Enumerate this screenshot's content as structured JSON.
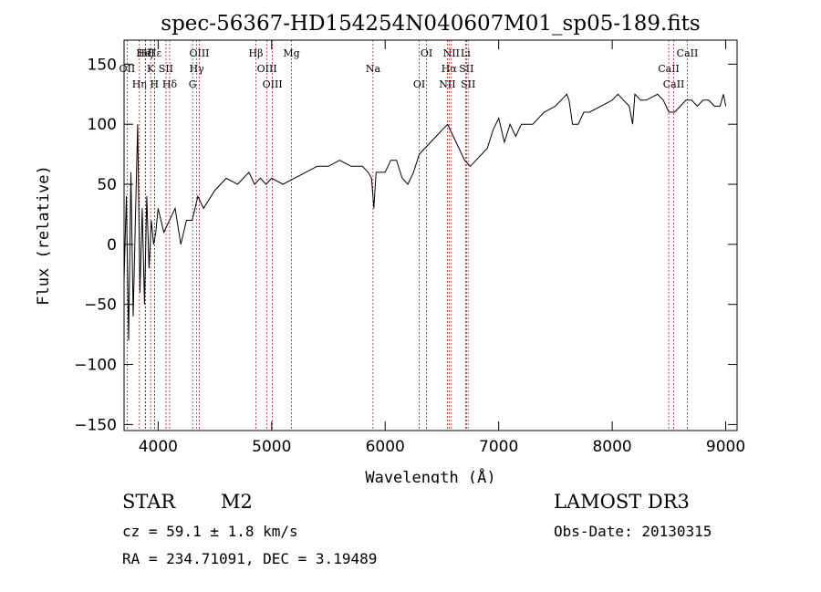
{
  "chart_data": {
    "type": "line",
    "title": "spec-56367-HD154254N040607M01_sp05-189.fits",
    "xlabel": "Wavelength (Å)",
    "ylabel": "Flux (relative)",
    "xlim": [
      3700,
      9100
    ],
    "ylim": [
      -155,
      170
    ],
    "xticks": [
      4000,
      5000,
      6000,
      7000,
      8000,
      9000
    ],
    "yticks": [
      -150,
      -100,
      -50,
      0,
      50,
      100,
      150
    ],
    "grid": false,
    "line_color": "#000000",
    "marker_color": "#b22222",
    "series": [
      {
        "x": [
          3700,
          3720,
          3740,
          3760,
          3780,
          3800,
          3820,
          3840,
          3860,
          3880,
          3900,
          3920,
          3940,
          3960,
          3980,
          4000,
          4050,
          4100,
          4150,
          4200,
          4250,
          4300,
          4350,
          4400,
          4500,
          4600,
          4700,
          4800,
          4850,
          4900,
          4950,
          5000,
          5100,
          5200,
          5300,
          5400,
          5500,
          5600,
          5700,
          5800,
          5850,
          5880,
          5900,
          5920,
          5950,
          6000,
          6050,
          6100,
          6150,
          6200,
          6250,
          6300,
          6350,
          6400,
          6450,
          6500,
          6550,
          6600,
          6650,
          6700,
          6750,
          6800,
          6850,
          6900,
          6950,
          7000,
          7050,
          7100,
          7150,
          7200,
          7300,
          7400,
          7500,
          7550,
          7600,
          7620,
          7650,
          7700,
          7750,
          7800,
          7900,
          8000,
          8050,
          8100,
          8150,
          8180,
          8200,
          8250,
          8300,
          8400,
          8450,
          8500,
          8550,
          8600,
          8650,
          8700,
          8750,
          8800,
          8850,
          8900,
          8950,
          8980,
          9000
        ],
        "y": [
          -30,
          40,
          -80,
          60,
          -60,
          20,
          100,
          -40,
          30,
          -50,
          40,
          -20,
          20,
          0,
          10,
          30,
          10,
          20,
          30,
          0,
          20,
          20,
          40,
          30,
          45,
          55,
          50,
          60,
          50,
          55,
          50,
          55,
          50,
          55,
          60,
          65,
          65,
          70,
          65,
          65,
          60,
          55,
          30,
          60,
          60,
          60,
          70,
          70,
          55,
          50,
          60,
          75,
          80,
          85,
          90,
          95,
          100,
          90,
          80,
          70,
          65,
          70,
          75,
          80,
          95,
          105,
          85,
          100,
          90,
          100,
          100,
          110,
          115,
          120,
          125,
          120,
          100,
          100,
          110,
          110,
          115,
          120,
          125,
          120,
          115,
          100,
          125,
          120,
          120,
          125,
          120,
          110,
          110,
          115,
          120,
          120,
          115,
          120,
          120,
          115,
          115,
          125,
          115
        ]
      }
    ],
    "annotations": [
      {
        "label": "Hε",
        "x": 3970
      },
      {
        "label": "OII",
        "x": 3727
      },
      {
        "label": "Hη",
        "x": 3835
      },
      {
        "label": "Hζ",
        "x": 3889
      },
      {
        "label": "K",
        "x": 3934
      },
      {
        "label": "H",
        "x": 3968
      },
      {
        "label": "HeI",
        "x": 3889
      },
      {
        "label": "SII",
        "x": 4069
      },
      {
        "label": "Hδ",
        "x": 4102
      },
      {
        "label": "OIII",
        "x": 4363
      },
      {
        "label": "Hγ",
        "x": 4340
      },
      {
        "label": "G",
        "x": 4304
      },
      {
        "label": "Hβ",
        "x": 4861
      },
      {
        "label": "OIII",
        "x": 4959
      },
      {
        "label": "OIII",
        "x": 5007
      },
      {
        "label": "Mg",
        "x": 5175
      },
      {
        "label": "Na",
        "x": 5893
      },
      {
        "label": "OI",
        "x": 6300
      },
      {
        "label": "OI",
        "x": 6364
      },
      {
        "label": "Hα",
        "x": 6563
      },
      {
        "label": "NII",
        "x": 6548
      },
      {
        "label": "NII",
        "x": 6583
      },
      {
        "label": "SII",
        "x": 6716
      },
      {
        "label": "SII",
        "x": 6731
      },
      {
        "label": "Li",
        "x": 6708
      },
      {
        "label": "CaII",
        "x": 8498
      },
      {
        "label": "CaII",
        "x": 8542
      },
      {
        "label": "CaII",
        "x": 8662
      }
    ]
  },
  "info": {
    "class_label": "STAR",
    "subclass": "M2",
    "survey": "LAMOST DR3",
    "cz": "cz = 59.1 ± 1.8 km/s",
    "obs_date": "Obs-Date: 20130315",
    "coords": "RA = 234.71091, DEC =   3.19489"
  }
}
